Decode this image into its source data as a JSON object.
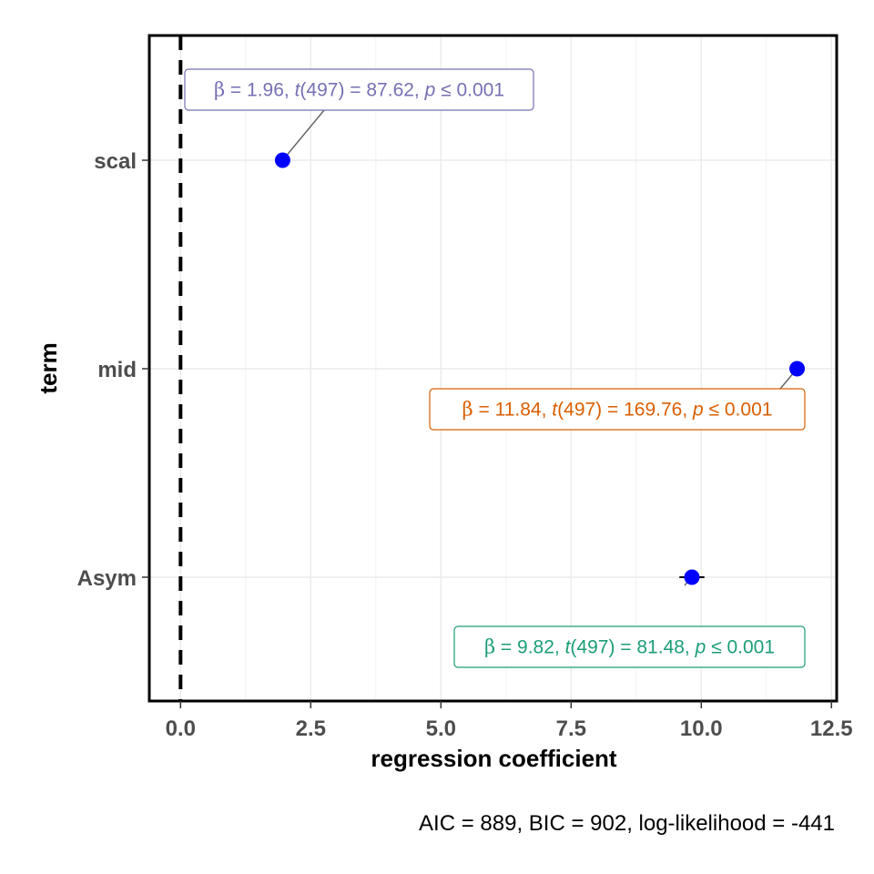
{
  "chart_data": {
    "type": "scatter",
    "title": "",
    "xlabel": "regression coefficient",
    "ylabel": "term",
    "xlim": [
      -0.6,
      12.6
    ],
    "x_ticks": [
      0.0,
      2.5,
      5.0,
      7.5,
      10.0,
      12.5
    ],
    "x_tick_labels": [
      "0.0",
      "2.5",
      "5.0",
      "7.5",
      "10.0",
      "12.5"
    ],
    "categories": [
      "scal",
      "mid",
      "Asym"
    ],
    "vline": 0,
    "grid": true,
    "points": [
      {
        "term": "scal",
        "estimate": 1.96,
        "conf_low": 1.92,
        "conf_high": 2.0,
        "label": {
          "beta": "1.96",
          "df": "497",
          "t": "87.62",
          "p": "0.001"
        },
        "label_color": "#7570b3"
      },
      {
        "term": "mid",
        "estimate": 11.84,
        "conf_low": 11.71,
        "conf_high": 11.97,
        "label": {
          "beta": "11.84",
          "df": "497",
          "t": "169.76",
          "p": "0.001"
        },
        "label_color": "#d95f02"
      },
      {
        "term": "Asym",
        "estimate": 9.82,
        "conf_low": 9.58,
        "conf_high": 10.06,
        "label": {
          "beta": "9.82",
          "df": "497",
          "t": "81.48",
          "p": "0.001"
        },
        "label_color": "#1b9e77"
      }
    ],
    "point_color": "#0000ff",
    "caption": "AIC = 889, BIC = 902, log-likelihood = -441"
  }
}
